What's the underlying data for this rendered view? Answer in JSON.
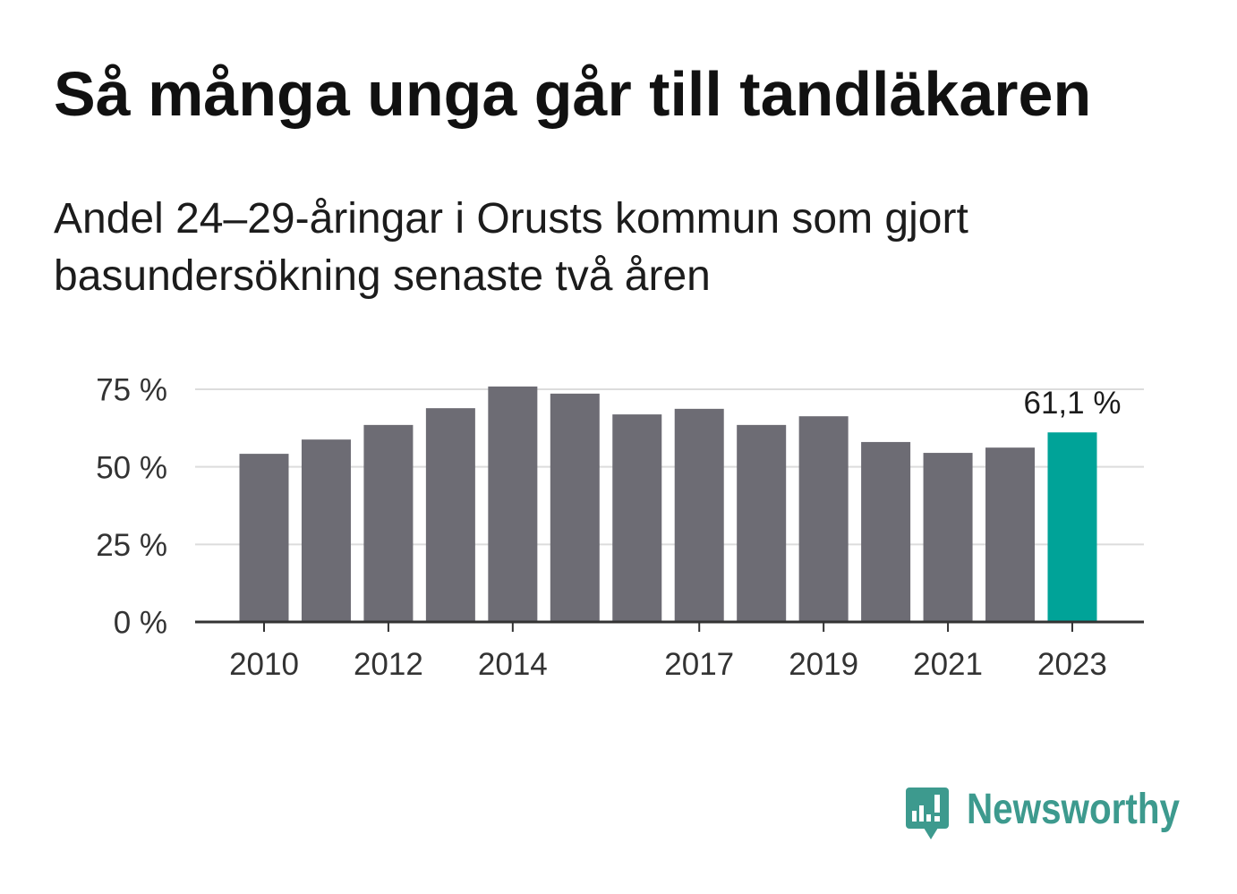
{
  "chart_data": {
    "type": "bar",
    "title": "Så många unga går till tandläkaren",
    "subtitle": "Andel 24–29-åringar i Orusts kommun som gjort basundersökning senaste två åren",
    "xlabel": "",
    "ylabel": "",
    "categories": [
      2010,
      2011,
      2012,
      2013,
      2014,
      2015,
      2016,
      2017,
      2018,
      2019,
      2020,
      2021,
      2022,
      2023
    ],
    "values": [
      54.2,
      58.8,
      63.5,
      68.9,
      75.9,
      73.6,
      66.9,
      68.7,
      63.5,
      66.3,
      58.0,
      54.5,
      56.2,
      61.1
    ],
    "ylim": [
      0,
      75
    ],
    "y_ticks": [
      0,
      25,
      50,
      75
    ],
    "y_tick_labels": [
      "0 %",
      "25 %",
      "50 %",
      "75 %"
    ],
    "x_ticks": [
      2010,
      2012,
      2014,
      2017,
      2019,
      2021,
      2023
    ],
    "highlight_category": 2023,
    "data_labels": [
      {
        "category": 2023,
        "text": "61,1 %"
      }
    ],
    "grid": true
  },
  "colors": {
    "bar": "#6d6c74",
    "highlight": "#00a398",
    "grid": "#dcdcdc",
    "axis": "#333333",
    "brand": "#3d9a8e"
  },
  "logo": {
    "text": "Newsworthy",
    "icon": "newsworthy-logo-icon"
  }
}
